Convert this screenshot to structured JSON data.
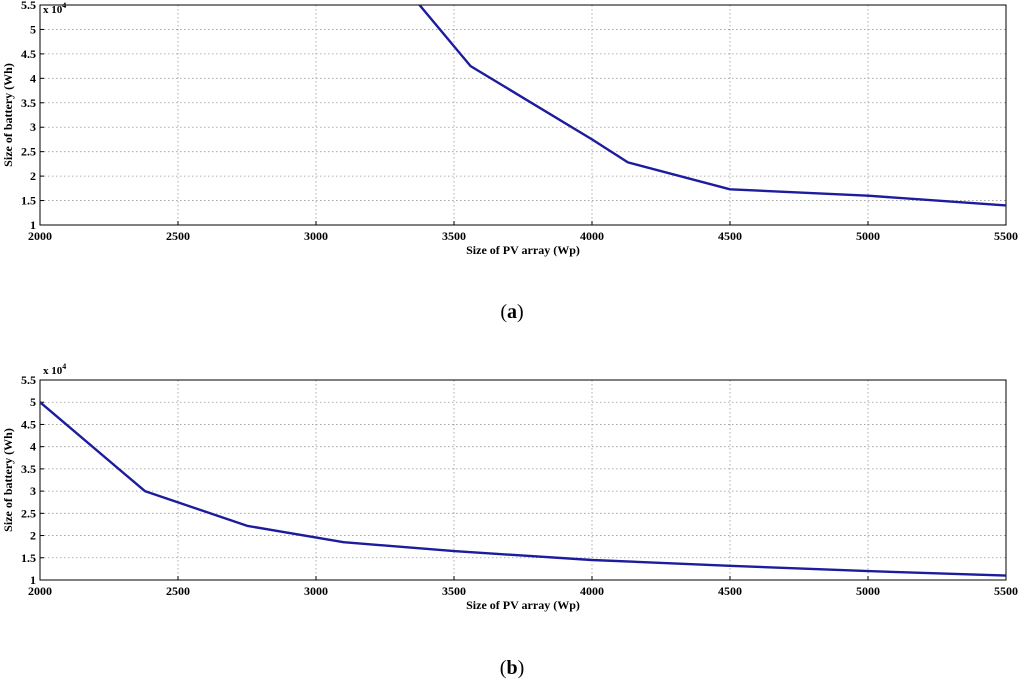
{
  "chart_data": [
    {
      "type": "line",
      "panel_label": "a",
      "exponent_label": "x 10",
      "exponent_power": "4",
      "xlabel": "Size of PV array (Wp)",
      "ylabel": "Size of battery (Wh)",
      "xlim": [
        2000,
        5500
      ],
      "ylim": [
        1,
        5.5
      ],
      "x_ticks": [
        "2000",
        "2500",
        "3000",
        "3500",
        "4000",
        "4500",
        "5000",
        "5500"
      ],
      "y_ticks": [
        "1",
        "1.5",
        "2",
        "2.5",
        "3",
        "3.5",
        "4",
        "4.5",
        "5",
        "5.5"
      ],
      "grid": true,
      "series": [
        {
          "color": "#1c1c9c",
          "x": [
            3375,
            3560,
            4000,
            4130,
            4500,
            5000,
            5500
          ],
          "y": [
            5.5,
            4.25,
            2.75,
            2.28,
            1.73,
            1.6,
            1.4
          ]
        }
      ]
    },
    {
      "type": "line",
      "panel_label": "b",
      "exponent_label": "x 10",
      "exponent_power": "4",
      "xlabel": "Size of PV array (Wp)",
      "ylabel": "Size of battery (Wh)",
      "xlim": [
        2000,
        5500
      ],
      "ylim": [
        1,
        5.5
      ],
      "x_ticks": [
        "2000",
        "2500",
        "3000",
        "3500",
        "4000",
        "4500",
        "5000",
        "5500"
      ],
      "y_ticks": [
        "1",
        "1.5",
        "2",
        "2.5",
        "3",
        "3.5",
        "4",
        "4.5",
        "5",
        "5.5"
      ],
      "grid": true,
      "series": [
        {
          "color": "#1c1c9c",
          "x": [
            2000,
            2380,
            2750,
            3100,
            3500,
            4000,
            4500,
            5000,
            5500
          ],
          "y": [
            5.0,
            3.0,
            2.22,
            1.85,
            1.65,
            1.45,
            1.32,
            1.2,
            1.1
          ]
        }
      ]
    }
  ]
}
